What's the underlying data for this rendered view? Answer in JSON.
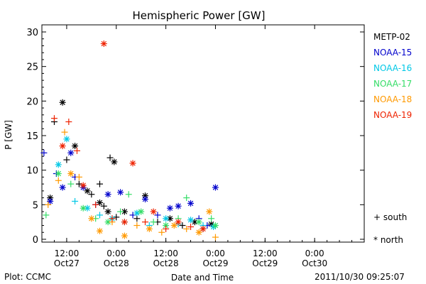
{
  "chart_data": {
    "type": "scatter",
    "title": "Hemispheric Power [GW]",
    "xlabel": "Date and Time",
    "ylabel": "P [GW]",
    "ylim": [
      0,
      30
    ],
    "yticks": [
      0,
      5,
      10,
      15,
      20,
      25,
      30
    ],
    "xlim": [
      "2011-10-27 06:00",
      "2011-10-30 12:00"
    ],
    "xticks": [
      {
        "time": "2011-10-27 12:00",
        "line1": "12:00",
        "line2": "Oct27"
      },
      {
        "time": "2011-10-28 00:00",
        "line1": "0:00",
        "line2": "Oct28"
      },
      {
        "time": "2011-10-28 12:00",
        "line1": "12:00",
        "line2": "Oct28"
      },
      {
        "time": "2011-10-29 00:00",
        "line1": "0:00",
        "line2": "Oct29"
      },
      {
        "time": "2011-10-29 12:00",
        "line1": "12:00",
        "line2": "Oct29"
      },
      {
        "time": "2011-10-30 00:00",
        "line1": "0:00",
        "line2": "Oct30"
      }
    ],
    "markers": {
      "south": "+",
      "north": "*"
    },
    "legend_position": "right",
    "series": [
      {
        "name": "METP-02",
        "color": "#000000",
        "points": [
          {
            "t": "2011-10-27 08:00",
            "v": 6.0,
            "h": "north"
          },
          {
            "t": "2011-10-27 09:00",
            "v": 17.0,
            "h": "south"
          },
          {
            "t": "2011-10-27 11:00",
            "v": 19.8,
            "h": "north"
          },
          {
            "t": "2011-10-27 12:00",
            "v": 11.5,
            "h": "south"
          },
          {
            "t": "2011-10-27 14:00",
            "v": 13.5,
            "h": "north"
          },
          {
            "t": "2011-10-27 15:00",
            "v": 8.0,
            "h": "south"
          },
          {
            "t": "2011-10-27 17:00",
            "v": 7.0,
            "h": "north"
          },
          {
            "t": "2011-10-27 18:00",
            "v": 6.5,
            "h": "south"
          },
          {
            "t": "2011-10-27 20:00",
            "v": 5.3,
            "h": "north"
          },
          {
            "t": "2011-10-27 21:00",
            "v": 4.8,
            "h": "south"
          },
          {
            "t": "2011-10-27 22:00",
            "v": 4.0,
            "h": "north"
          },
          {
            "t": "2011-10-28 00:00",
            "v": 3.2,
            "h": "south"
          },
          {
            "t": "2011-10-27 20:00",
            "v": 8.0,
            "h": "south"
          },
          {
            "t": "2011-10-27 22:30",
            "v": 11.8,
            "h": "south"
          },
          {
            "t": "2011-10-27 23:30",
            "v": 11.2,
            "h": "north"
          },
          {
            "t": "2011-10-28 02:00",
            "v": 4.0,
            "h": "north"
          },
          {
            "t": "2011-10-28 05:00",
            "v": 3.0,
            "h": "south"
          },
          {
            "t": "2011-10-28 07:00",
            "v": 6.3,
            "h": "north"
          },
          {
            "t": "2011-10-28 10:00",
            "v": 2.5,
            "h": "south"
          },
          {
            "t": "2011-10-28 13:00",
            "v": 3.0,
            "h": "north"
          },
          {
            "t": "2011-10-28 16:00",
            "v": 2.0,
            "h": "south"
          },
          {
            "t": "2011-10-28 19:00",
            "v": 2.5,
            "h": "north"
          },
          {
            "t": "2011-10-28 21:00",
            "v": 1.5,
            "h": "south"
          },
          {
            "t": "2011-10-28 23:00",
            "v": 2.2,
            "h": "north"
          }
        ]
      },
      {
        "name": "NOAA-15",
        "color": "#0000cc",
        "points": [
          {
            "t": "2011-10-27 06:30",
            "v": 12.5,
            "h": "south"
          },
          {
            "t": "2011-10-27 08:00",
            "v": 5.5,
            "h": "north"
          },
          {
            "t": "2011-10-27 09:30",
            "v": 9.5,
            "h": "south"
          },
          {
            "t": "2011-10-27 11:00",
            "v": 7.5,
            "h": "north"
          },
          {
            "t": "2011-10-27 13:00",
            "v": 12.5,
            "h": "north"
          },
          {
            "t": "2011-10-27 14:00",
            "v": 9.0,
            "h": "south"
          },
          {
            "t": "2011-10-27 16:00",
            "v": 7.5,
            "h": "north"
          },
          {
            "t": "2011-10-27 19:00",
            "v": 5.0,
            "h": "south"
          },
          {
            "t": "2011-10-27 22:00",
            "v": 6.5,
            "h": "north"
          },
          {
            "t": "2011-10-28 01:00",
            "v": 6.8,
            "h": "north"
          },
          {
            "t": "2011-10-28 04:00",
            "v": 3.5,
            "h": "south"
          },
          {
            "t": "2011-10-28 07:00",
            "v": 5.8,
            "h": "north"
          },
          {
            "t": "2011-10-28 10:00",
            "v": 3.5,
            "h": "south"
          },
          {
            "t": "2011-10-28 13:00",
            "v": 4.5,
            "h": "north"
          },
          {
            "t": "2011-10-28 15:00",
            "v": 4.8,
            "h": "north"
          },
          {
            "t": "2011-10-28 18:00",
            "v": 5.2,
            "h": "north"
          },
          {
            "t": "2011-10-28 20:00",
            "v": 3.0,
            "h": "south"
          },
          {
            "t": "2011-10-29 00:00",
            "v": 7.5,
            "h": "north"
          },
          {
            "t": "2011-10-28 22:00",
            "v": 2.0,
            "h": "south"
          }
        ]
      },
      {
        "name": "NOAA-16",
        "color": "#00c8e6",
        "points": [
          {
            "t": "2011-10-27 10:00",
            "v": 10.8,
            "h": "north"
          },
          {
            "t": "2011-10-27 12:00",
            "v": 14.5,
            "h": "north"
          },
          {
            "t": "2011-10-27 14:00",
            "v": 5.5,
            "h": "south"
          },
          {
            "t": "2011-10-27 17:00",
            "v": 4.5,
            "h": "north"
          },
          {
            "t": "2011-10-27 20:00",
            "v": 3.5,
            "h": "south"
          },
          {
            "t": "2011-10-27 23:00",
            "v": 3.0,
            "h": "north"
          },
          {
            "t": "2011-10-28 02:00",
            "v": 2.5,
            "h": "south"
          },
          {
            "t": "2011-10-28 05:00",
            "v": 3.8,
            "h": "north"
          },
          {
            "t": "2011-10-28 08:00",
            "v": 2.0,
            "h": "south"
          },
          {
            "t": "2011-10-28 12:00",
            "v": 3.0,
            "h": "north"
          },
          {
            "t": "2011-10-28 15:00",
            "v": 2.2,
            "h": "south"
          },
          {
            "t": "2011-10-28 18:00",
            "v": 2.8,
            "h": "north"
          },
          {
            "t": "2011-10-28 21:00",
            "v": 2.0,
            "h": "south"
          },
          {
            "t": "2011-10-28 23:30",
            "v": 1.8,
            "h": "north"
          }
        ]
      },
      {
        "name": "NOAA-17",
        "color": "#33dd66",
        "points": [
          {
            "t": "2011-10-27 07:00",
            "v": 3.5,
            "h": "south"
          },
          {
            "t": "2011-10-27 10:00",
            "v": 9.5,
            "h": "north"
          },
          {
            "t": "2011-10-27 13:00",
            "v": 8.0,
            "h": "south"
          },
          {
            "t": "2011-10-27 16:00",
            "v": 4.5,
            "h": "north"
          },
          {
            "t": "2011-10-27 19:00",
            "v": 3.0,
            "h": "south"
          },
          {
            "t": "2011-10-27 22:00",
            "v": 2.5,
            "h": "north"
          },
          {
            "t": "2011-10-28 01:00",
            "v": 4.0,
            "h": "south"
          },
          {
            "t": "2011-10-28 03:00",
            "v": 6.5,
            "h": "south"
          },
          {
            "t": "2011-10-28 06:00",
            "v": 4.0,
            "h": "north"
          },
          {
            "t": "2011-10-28 09:00",
            "v": 2.5,
            "h": "south"
          },
          {
            "t": "2011-10-28 12:00",
            "v": 2.0,
            "h": "north"
          },
          {
            "t": "2011-10-28 15:00",
            "v": 3.0,
            "h": "south"
          },
          {
            "t": "2011-10-28 17:00",
            "v": 6.0,
            "h": "south"
          },
          {
            "t": "2011-10-28 20:00",
            "v": 2.5,
            "h": "north"
          },
          {
            "t": "2011-10-28 23:00",
            "v": 3.0,
            "h": "south"
          },
          {
            "t": "2011-10-29 00:00",
            "v": 2.0,
            "h": "north"
          }
        ]
      },
      {
        "name": "NOAA-18",
        "color": "#ff9900",
        "points": [
          {
            "t": "2011-10-27 07:30",
            "v": 5.0,
            "h": "south"
          },
          {
            "t": "2011-10-27 10:00",
            "v": 8.5,
            "h": "south"
          },
          {
            "t": "2011-10-27 11:30",
            "v": 15.5,
            "h": "south"
          },
          {
            "t": "2011-10-27 13:00",
            "v": 9.5,
            "h": "north"
          },
          {
            "t": "2011-10-27 15:00",
            "v": 9.0,
            "h": "south"
          },
          {
            "t": "2011-10-27 18:00",
            "v": 3.0,
            "h": "north"
          },
          {
            "t": "2011-10-27 20:00",
            "v": 1.2,
            "h": "north"
          },
          {
            "t": "2011-10-27 23:00",
            "v": 2.5,
            "h": "south"
          },
          {
            "t": "2011-10-28 02:00",
            "v": 0.5,
            "h": "north"
          },
          {
            "t": "2011-10-28 05:00",
            "v": 2.0,
            "h": "south"
          },
          {
            "t": "2011-10-28 08:00",
            "v": 1.5,
            "h": "north"
          },
          {
            "t": "2011-10-28 11:00",
            "v": 1.0,
            "h": "south"
          },
          {
            "t": "2011-10-28 14:00",
            "v": 2.0,
            "h": "north"
          },
          {
            "t": "2011-10-28 17:00",
            "v": 1.5,
            "h": "south"
          },
          {
            "t": "2011-10-28 20:00",
            "v": 1.0,
            "h": "north"
          },
          {
            "t": "2011-10-28 22:30",
            "v": 4.0,
            "h": "north"
          },
          {
            "t": "2011-10-29 00:00",
            "v": 0.3,
            "h": "south"
          }
        ]
      },
      {
        "name": "NOAA-19",
        "color": "#ee2200",
        "points": [
          {
            "t": "2011-10-27 09:00",
            "v": 17.5,
            "h": "south"
          },
          {
            "t": "2011-10-27 11:00",
            "v": 13.5,
            "h": "north"
          },
          {
            "t": "2011-10-27 12:30",
            "v": 17.0,
            "h": "south"
          },
          {
            "t": "2011-10-27 14:30",
            "v": 12.8,
            "h": "south"
          },
          {
            "t": "2011-10-27 16:00",
            "v": 7.8,
            "h": "north"
          },
          {
            "t": "2011-10-27 19:00",
            "v": 5.0,
            "h": "south"
          },
          {
            "t": "2011-10-27 21:00",
            "v": 28.3,
            "h": "north"
          },
          {
            "t": "2011-10-27 23:00",
            "v": 3.0,
            "h": "south"
          },
          {
            "t": "2011-10-28 02:00",
            "v": 2.5,
            "h": "north"
          },
          {
            "t": "2011-10-28 04:00",
            "v": 11.0,
            "h": "north"
          },
          {
            "t": "2011-10-28 07:00",
            "v": 2.5,
            "h": "south"
          },
          {
            "t": "2011-10-28 09:00",
            "v": 4.0,
            "h": "north"
          },
          {
            "t": "2011-10-28 12:00",
            "v": 1.5,
            "h": "south"
          },
          {
            "t": "2011-10-28 15:00",
            "v": 2.5,
            "h": "north"
          },
          {
            "t": "2011-10-28 18:00",
            "v": 1.8,
            "h": "south"
          },
          {
            "t": "2011-10-28 21:00",
            "v": 1.5,
            "h": "north"
          }
        ]
      }
    ]
  },
  "legend": {
    "south_symbol": "+",
    "south_label": "south",
    "north_symbol": "*",
    "north_label": "north"
  },
  "footer": {
    "left": "Plot: CCMC",
    "right": "2011/10/30 09:25:07"
  }
}
